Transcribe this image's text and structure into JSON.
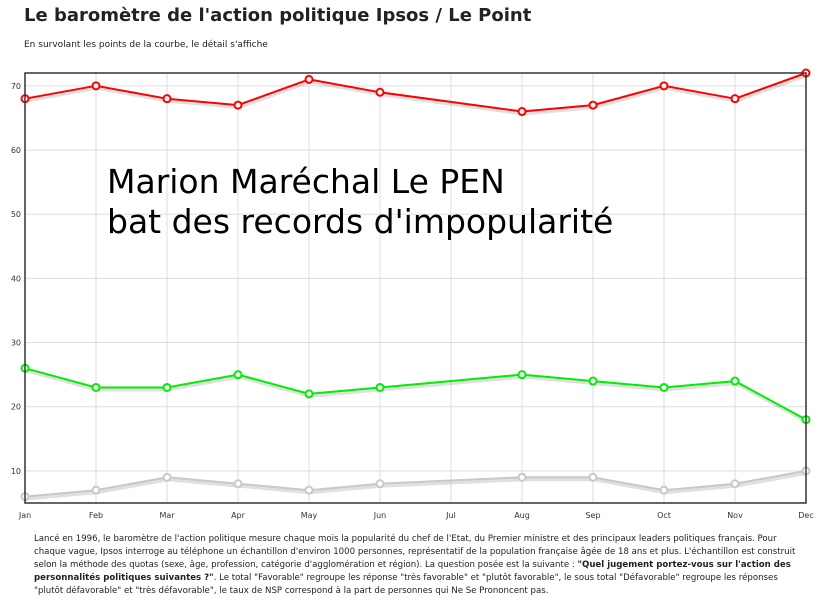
{
  "header": {
    "title": "Le baromètre de l'action politique Ipsos / Le Point",
    "subtitle": "En survolant les points de la courbe, le détail s'affiche"
  },
  "annotation": {
    "line1": "Marion Maréchal Le PEN",
    "line2": "bat des records d'impopularité"
  },
  "footer": {
    "text_part1": "Lancé en 1996, le baromètre de l'action politique mesure chaque mois la popularité du chef de l'Etat, du Premier ministre et des principaux leaders politiques français. Pour chaque vague, Ipsos interroge au téléphone un échantillon d'environ 1000 personnes, représentatif de la population française âgée de 18 ans et plus. L'échantillon est construit selon la méthode des quotas (sexe, âge, profession, catégorie d'agglomération et région). La question posée est la suivante : ",
    "question": "\"Quel jugement portez-vous sur l'action des personnalités politiques suivantes ?\"",
    "text_part2": ". Le total \"Favorable\" regroupe les réponse \"très favorable\" et \"plutôt favorable\", le sous total \"Défavorable\" regroupe les réponses \"plutôt défavorable\" et \"très défavorable\", le taux de NSP correspond à la part de personnes qui Ne Se Prononcent pas."
  },
  "chart_data": {
    "type": "line",
    "title": "Le baromètre de l'action politique Ipsos / Le Point",
    "categories": [
      "Jan",
      "Feb",
      "Mar",
      "Apr",
      "May",
      "Jun",
      "Jul",
      "Aug",
      "Sep",
      "Oct",
      "Nov",
      "Dec"
    ],
    "x": [
      0,
      1,
      2,
      3,
      4,
      5,
      7,
      8,
      9,
      10,
      11
    ],
    "y_ticks": [
      10,
      20,
      30,
      40,
      50,
      60,
      70
    ],
    "ylim": [
      5,
      72
    ],
    "grid": true,
    "legend": "none",
    "series": [
      {
        "color": "#ff0000",
        "values": [
          68,
          70,
          68,
          67,
          71,
          69,
          66,
          67,
          70,
          68,
          72
        ]
      },
      {
        "color": "#00ee00",
        "values": [
          26,
          23,
          23,
          25,
          22,
          23,
          25,
          24,
          23,
          24,
          18
        ]
      },
      {
        "color": "#c8c8c8",
        "values": [
          6,
          7,
          9,
          8,
          7,
          8,
          9,
          9,
          7,
          8,
          10
        ]
      }
    ]
  }
}
